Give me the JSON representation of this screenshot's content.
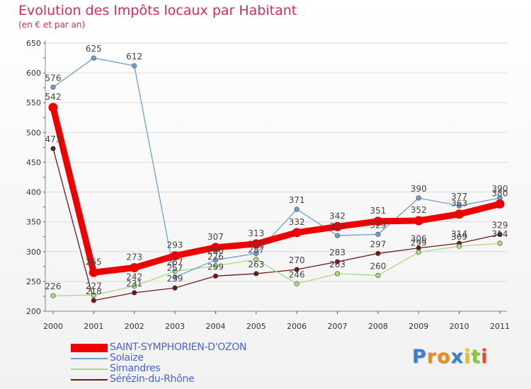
{
  "chart_data": {
    "type": "line",
    "title": "Evolution des Impôts locaux par Habitant",
    "subtitle": "(en € et par an)",
    "categories": [
      "2000",
      "2001",
      "2002",
      "2003",
      "2004",
      "2005",
      "2006",
      "2007",
      "2008",
      "2009",
      "2010",
      "2011"
    ],
    "ylim": [
      200,
      650
    ],
    "yticks": [
      200,
      250,
      300,
      350,
      400,
      450,
      500,
      550,
      600,
      650
    ],
    "series": [
      {
        "name": "Sérézin-du-Rhône",
        "color": "#6b1a1a",
        "values": [
          473,
          218,
          231,
          239,
          259,
          263,
          270,
          283,
          297,
          306,
          314,
          329
        ]
      },
      {
        "name": "Simandres",
        "color": "#a8dd7c",
        "values": [
          226,
          227,
          242,
          267,
          276,
          287,
          246,
          263,
          260,
          299,
          309,
          314
        ]
      },
      {
        "name": "Solaize",
        "color": "#6f9fcf",
        "values": [
          576,
          625,
          612,
          257,
          286,
          297,
          371,
          327,
          329,
          390,
          377,
          390
        ]
      },
      {
        "name": "SAINT-SYMPHORIEN-D'OZON",
        "color": "#ee0000",
        "values": [
          542,
          265,
          273,
          293,
          307,
          313,
          332,
          342,
          351,
          352,
          363,
          380
        ]
      }
    ]
  },
  "legend": {
    "items": [
      {
        "label": "SAINT-SYMPHORIEN-D'OZON",
        "color": "#ee0000"
      },
      {
        "label": "Solaize",
        "color": "#6f9fcf"
      },
      {
        "label": "Simandres",
        "color": "#a8dd7c"
      },
      {
        "label": "Sérézin-du-Rhône",
        "color": "#6b1a1a"
      }
    ]
  },
  "logo": {
    "letters": [
      "P",
      "r",
      "o",
      "x",
      "i",
      "t",
      "i"
    ],
    "colors": [
      "#3a7fcf",
      "#ee8a1a",
      "#ee8a1a",
      "#3a7fcf",
      "#e9c21c",
      "#8cc63f",
      "#e64a2e"
    ]
  }
}
